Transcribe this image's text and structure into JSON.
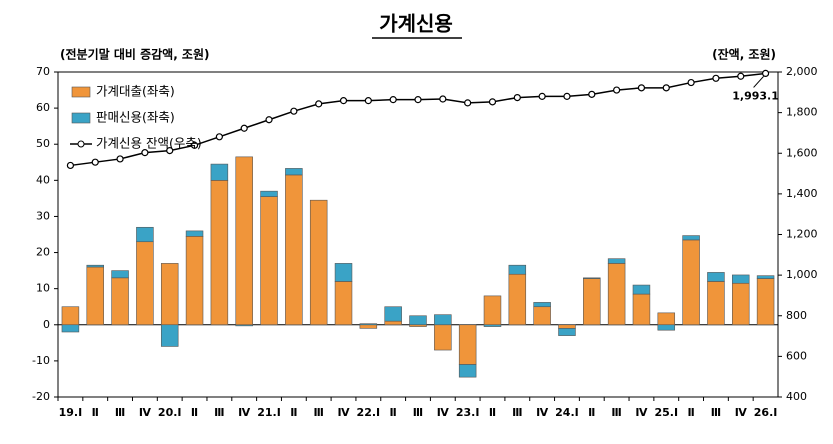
{
  "chart_data": {
    "type": "bar",
    "title": "가계신용",
    "ylabel": "(전분기말 대비 증감액, 조원)",
    "y2label": "(잔액, 조원)",
    "categories": [
      "19.Ⅰ",
      "Ⅱ",
      "Ⅲ",
      "Ⅳ",
      "20.Ⅰ",
      "Ⅱ",
      "Ⅲ",
      "Ⅳ",
      "21.Ⅰ",
      "Ⅱ",
      "Ⅲ",
      "Ⅳ",
      "22.Ⅰ",
      "Ⅱ",
      "Ⅲ",
      "Ⅳ",
      "23.Ⅰ",
      "Ⅱ",
      "Ⅲ",
      "Ⅳ",
      "24.Ⅰ",
      "Ⅱ",
      "Ⅲ",
      "Ⅳ",
      "25.Ⅰ",
      "Ⅱ",
      "Ⅲ",
      "Ⅳ",
      "26.Ⅰ"
    ],
    "series": [
      {
        "name": "가계대출(좌축)",
        "color": "#f0953a",
        "values": [
          5,
          16,
          13,
          23,
          17,
          24.5,
          40,
          46.5,
          35.5,
          41.5,
          34.5,
          12,
          -1,
          1,
          -0.5,
          -7,
          -11,
          8,
          14,
          5,
          -1,
          12.8,
          17,
          8.5,
          3.3,
          23.5,
          12,
          11.5,
          12.8
        ]
      },
      {
        "name": "판매신용(좌축)",
        "color": "#3aa3c6",
        "values": [
          -2,
          0.5,
          2,
          4,
          -6,
          1.5,
          4.5,
          -0.3,
          1.5,
          1.8,
          0,
          5,
          0.3,
          4,
          2.5,
          2.8,
          -3.5,
          -0.5,
          2.5,
          1.2,
          -2,
          0.2,
          1.3,
          2.5,
          -1.5,
          1.2,
          2.5,
          2.3,
          0.8
        ]
      },
      {
        "name": "가계신용 잔액(우축)",
        "color": "#000000",
        "type": "line",
        "axis": "y2",
        "values": [
          1540,
          1556,
          1572,
          1603,
          1613,
          1639,
          1681,
          1723,
          1765,
          1807,
          1843,
          1859,
          1859,
          1864,
          1864,
          1867,
          1848,
          1853,
          1874,
          1880,
          1880,
          1890,
          1911,
          1922,
          1922,
          1948,
          1969,
          1979,
          1993.1
        ],
        "value_labels": [
          null,
          null,
          null,
          null,
          null,
          null,
          null,
          null,
          null,
          null,
          null,
          null,
          null,
          null,
          null,
          null,
          null,
          null,
          null,
          null,
          null,
          null,
          null,
          null,
          null,
          null,
          null,
          null,
          "1,993.1"
        ]
      }
    ],
    "ylim": [
      -20,
      70
    ],
    "yticks": [
      -20,
      -10,
      0,
      10,
      20,
      30,
      40,
      50,
      60,
      70
    ],
    "y2lim": [
      400,
      2000
    ],
    "y2ticks": [
      400,
      600,
      800,
      {
        "value": 1000,
        "label": "1,000"
      },
      {
        "value": 1200,
        "label": "1,200"
      },
      {
        "value": 1400,
        "label": "1,400"
      },
      {
        "value": 1600,
        "label": "1,600"
      },
      {
        "value": 1800,
        "label": "1,800"
      },
      {
        "value": 2000,
        "label": "2,000"
      }
    ],
    "legend": "upper left"
  }
}
